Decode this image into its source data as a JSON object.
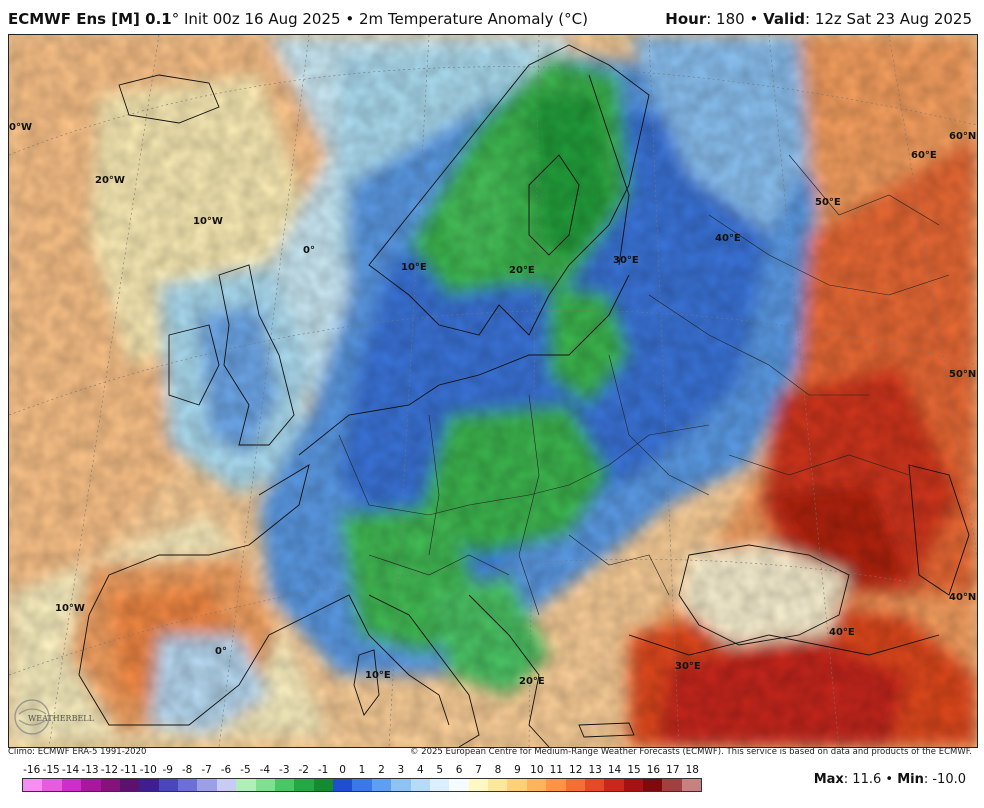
{
  "header": {
    "model": "ECMWF Ens [M] 0.1",
    "degree": "°",
    "init": " Init 00z 16 Aug 2025",
    "bullet": " • ",
    "field": "2m Temperature Anomaly (",
    "unit": "°C",
    "close": ")",
    "hour_label": "Hour",
    "hour_value": ": 180 • ",
    "valid_label": "Valid",
    "valid_value": ": 12z Sat 23 Aug 2025"
  },
  "footer": {
    "climo": "Climo: ECMWF ERA-5 1991-2020",
    "copyright": "© 2025 European Centre for Medium-Range Weather Forecasts (ECMWF). This service is based on data and products of the ECMWF."
  },
  "colorbar": {
    "ticks": [
      "-16",
      "-15",
      "-14",
      "-13",
      "-12",
      "-11",
      "-10",
      "-9",
      "-8",
      "-7",
      "-6",
      "-5",
      "-4",
      "-3",
      "-2",
      "-1",
      "0",
      "1",
      "2",
      "3",
      "4",
      "5",
      "6",
      "7",
      "8",
      "9",
      "10",
      "11",
      "12",
      "13",
      "14",
      "15",
      "16",
      "17",
      "18"
    ],
    "colors": [
      "#f78cf2",
      "#e65ce0",
      "#cc2ec7",
      "#a8179f",
      "#84137d",
      "#5e1070",
      "#3f1f8f",
      "#4a47b8",
      "#6c70d6",
      "#9b9fe8",
      "#c8ccf4",
      "#aef0b8",
      "#7fe08f",
      "#4cc565",
      "#27a744",
      "#178a2f",
      "#1f4fd1",
      "#3a78e8",
      "#5d9ff0",
      "#8cc3f4",
      "#b5dcf7",
      "#dcefff",
      "#f5fbff",
      "#fff8c2",
      "#ffe79a",
      "#ffcf7a",
      "#ffb35e",
      "#ff9347",
      "#f56e35",
      "#e34a25",
      "#c9281a",
      "#a51212",
      "#7e0b0b",
      "#a04040",
      "#c98080"
    ]
  },
  "maxmin": {
    "max_label": "Max",
    "max_value": ": 11.6 • ",
    "min_label": "Min",
    "min_value": ": -10.0"
  },
  "map": {
    "lon_labels": [
      "0°W",
      "20°W",
      "10°W",
      "0°",
      "10°E",
      "20°E",
      "30°E",
      "40°E",
      "50°E",
      "60°E",
      "10°W",
      "0°",
      "10°E",
      "20°E",
      "30°E",
      "40°E"
    ],
    "lat_labels": [
      "60°N",
      "50°N",
      "40°N"
    ],
    "colors": {
      "ocean_warm": "#ffc58a",
      "ocean_neutral": "#fff4c4",
      "cold_light": "#9ed3f2",
      "cold_mid": "#4f95e6",
      "cold_deep": "#2a62d6",
      "green": "#3cb84f",
      "green_deep": "#1f9a34",
      "warm_mid": "#f78a4a",
      "warm_deep": "#d9361b",
      "hot": "#b3200f"
    }
  },
  "logo": {
    "text": "WEATHERBELL"
  }
}
